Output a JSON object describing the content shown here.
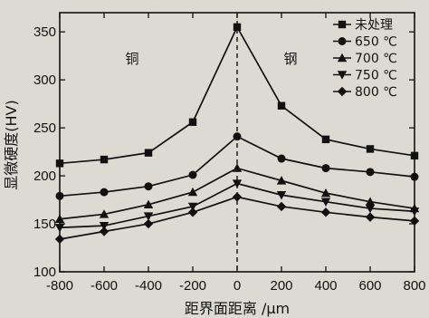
{
  "chart_data": {
    "type": "line",
    "xlabel": "距界面距离 /μm",
    "ylabel": "显微硬度(HV)",
    "xlim": [
      -800,
      800
    ],
    "ylim": [
      100,
      370
    ],
    "x_ticks": [
      "-800",
      "-600",
      "-400",
      "-200",
      "0",
      "200",
      "400",
      "600",
      "800"
    ],
    "y_ticks": [
      "100",
      "150",
      "200",
      "250",
      "300",
      "350"
    ],
    "x": [
      -800,
      -600,
      -400,
      -200,
      0,
      200,
      400,
      600,
      800
    ],
    "legend_position": "top-right",
    "annotations": {
      "left_region": "铜",
      "right_region": "钢"
    },
    "series": [
      {
        "name": "未处理",
        "marker": "square",
        "values": [
          213,
          217,
          224,
          256,
          355,
          273,
          238,
          228,
          221
        ]
      },
      {
        "name": "650 ℃",
        "marker": "circle",
        "values": [
          179,
          183,
          189,
          201,
          241,
          218,
          208,
          204,
          199
        ]
      },
      {
        "name": "700 ℃",
        "marker": "triangle-up",
        "values": [
          155,
          160,
          170,
          183,
          208,
          195,
          182,
          173,
          166
        ]
      },
      {
        "name": "750 ℃",
        "marker": "triangle-down",
        "values": [
          146,
          148,
          158,
          168,
          192,
          180,
          173,
          166,
          163
        ]
      },
      {
        "name": "800 ℃",
        "marker": "diamond",
        "values": [
          134,
          142,
          150,
          162,
          178,
          168,
          162,
          157,
          153
        ]
      }
    ],
    "colors": {
      "line": "#111111",
      "background": "#dcdad3"
    }
  }
}
